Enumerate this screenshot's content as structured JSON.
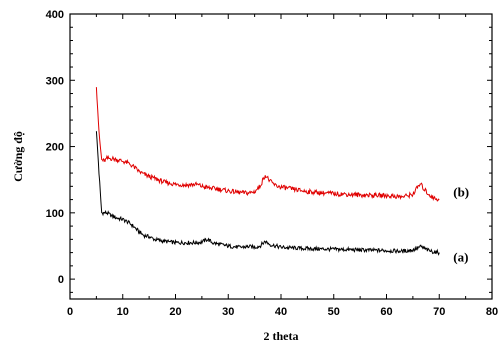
{
  "chart_data": {
    "type": "line",
    "xlabel": "2 theta",
    "ylabel": "Cường độ",
    "xlim": [
      0,
      80
    ],
    "ylim": [
      -30,
      400
    ],
    "x_ticks": [
      0,
      10,
      20,
      30,
      40,
      50,
      60,
      70,
      80
    ],
    "y_ticks": [
      0,
      100,
      200,
      300,
      400
    ],
    "grid": false,
    "series": [
      {
        "name": "(a)",
        "color": "#000000",
        "points": [
          [
            5,
            225
          ],
          [
            5.5,
            160
          ],
          [
            6,
            100
          ],
          [
            7,
            100
          ],
          [
            8,
            95
          ],
          [
            9,
            92
          ],
          [
            10,
            90
          ],
          [
            11,
            86
          ],
          [
            12,
            80
          ],
          [
            13,
            72
          ],
          [
            14,
            66
          ],
          [
            15,
            64
          ],
          [
            16,
            60
          ],
          [
            18,
            57
          ],
          [
            20,
            55
          ],
          [
            22,
            55
          ],
          [
            24,
            55
          ],
          [
            25,
            56
          ],
          [
            26,
            60
          ],
          [
            26.5,
            58
          ],
          [
            27,
            55
          ],
          [
            28,
            53
          ],
          [
            30,
            50
          ],
          [
            32,
            48
          ],
          [
            34,
            49
          ],
          [
            35,
            48
          ],
          [
            36,
            50
          ],
          [
            37,
            57
          ],
          [
            38,
            52
          ],
          [
            39,
            50
          ],
          [
            40,
            48
          ],
          [
            45,
            46
          ],
          [
            50,
            45
          ],
          [
            55,
            44
          ],
          [
            60,
            43
          ],
          [
            63,
            42
          ],
          [
            65,
            44
          ],
          [
            66.5,
            49
          ],
          [
            67,
            47
          ],
          [
            68,
            43
          ],
          [
            69,
            41
          ],
          [
            70,
            40
          ]
        ]
      },
      {
        "name": "(b)",
        "color": "#e00000",
        "points": [
          [
            5,
            293
          ],
          [
            5.5,
            220
          ],
          [
            6,
            180
          ],
          [
            6.5,
            178
          ],
          [
            7,
            182
          ],
          [
            8,
            182
          ],
          [
            9,
            180
          ],
          [
            10,
            178
          ],
          [
            11,
            175
          ],
          [
            12,
            170
          ],
          [
            13,
            163
          ],
          [
            14,
            158
          ],
          [
            15,
            155
          ],
          [
            16,
            152
          ],
          [
            18,
            146
          ],
          [
            20,
            143
          ],
          [
            22,
            142
          ],
          [
            24,
            143
          ],
          [
            25,
            140
          ],
          [
            26,
            138
          ],
          [
            28,
            136
          ],
          [
            30,
            133
          ],
          [
            32,
            131
          ],
          [
            33,
            130
          ],
          [
            34,
            130
          ],
          [
            35,
            132
          ],
          [
            36,
            140
          ],
          [
            37,
            157
          ],
          [
            38,
            147
          ],
          [
            39,
            141
          ],
          [
            40,
            139
          ],
          [
            42,
            136
          ],
          [
            45,
            132
          ],
          [
            48,
            130
          ],
          [
            50,
            129
          ],
          [
            55,
            127
          ],
          [
            60,
            126
          ],
          [
            63,
            124
          ],
          [
            65,
            128
          ],
          [
            66,
            140
          ],
          [
            66.5,
            143
          ],
          [
            67,
            137
          ],
          [
            68,
            128
          ],
          [
            69,
            122
          ],
          [
            70,
            120
          ]
        ]
      }
    ]
  }
}
